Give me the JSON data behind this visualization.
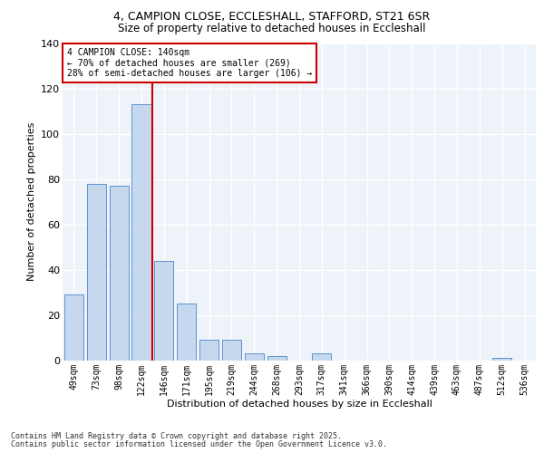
{
  "title_line1": "4, CAMPION CLOSE, ECCLESHALL, STAFFORD, ST21 6SR",
  "title_line2": "Size of property relative to detached houses in Eccleshall",
  "xlabel": "Distribution of detached houses by size in Eccleshall",
  "ylabel": "Number of detached properties",
  "categories": [
    "49sqm",
    "73sqm",
    "98sqm",
    "122sqm",
    "146sqm",
    "171sqm",
    "195sqm",
    "219sqm",
    "244sqm",
    "268sqm",
    "293sqm",
    "317sqm",
    "341sqm",
    "366sqm",
    "390sqm",
    "414sqm",
    "439sqm",
    "463sqm",
    "487sqm",
    "512sqm",
    "536sqm"
  ],
  "values": [
    29,
    78,
    77,
    113,
    44,
    25,
    9,
    9,
    3,
    2,
    0,
    3,
    0,
    0,
    0,
    0,
    0,
    0,
    0,
    1,
    0
  ],
  "bar_color": "#c5d8ed",
  "bar_edge_color": "#4a86c8",
  "background_color": "#eef3fa",
  "grid_color": "#ffffff",
  "red_line_index": 4,
  "annotation_title": "4 CAMPION CLOSE: 140sqm",
  "annotation_line1": "← 70% of detached houses are smaller (269)",
  "annotation_line2": "28% of semi-detached houses are larger (106) →",
  "annotation_box_color": "#ffffff",
  "annotation_box_edge_color": "#cc0000",
  "red_line_color": "#cc0000",
  "ylim": [
    0,
    140
  ],
  "yticks": [
    0,
    20,
    40,
    60,
    80,
    100,
    120,
    140
  ],
  "footer_line1": "Contains HM Land Registry data © Crown copyright and database right 2025.",
  "footer_line2": "Contains public sector information licensed under the Open Government Licence v3.0."
}
